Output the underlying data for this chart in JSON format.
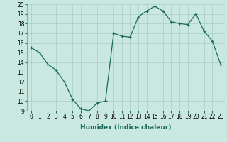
{
  "x": [
    0,
    1,
    2,
    3,
    4,
    5,
    6,
    7,
    8,
    9,
    10,
    11,
    12,
    13,
    14,
    15,
    16,
    17,
    18,
    19,
    20,
    21,
    22,
    23
  ],
  "y": [
    15.5,
    15.0,
    13.8,
    13.2,
    12.0,
    10.2,
    9.2,
    9.0,
    9.8,
    10.0,
    17.0,
    16.7,
    16.6,
    18.7,
    19.3,
    19.8,
    19.3,
    18.2,
    18.0,
    17.9,
    19.0,
    17.2,
    16.2,
    13.8
  ],
  "line_color": "#1a6b5a",
  "marker": "+",
  "marker_size": 3,
  "marker_linewidth": 0.9,
  "linewidth": 0.9,
  "background_color": "#c8e8e0",
  "grid_color": "#aacccc",
  "xlabel": "Humidex (Indice chaleur)",
  "xlabel_fontsize": 6.5,
  "tick_fontsize": 5.5,
  "xlim": [
    -0.5,
    23.5
  ],
  "ylim": [
    9,
    20
  ],
  "yticks": [
    9,
    10,
    11,
    12,
    13,
    14,
    15,
    16,
    17,
    18,
    19,
    20
  ],
  "xticks": [
    0,
    1,
    2,
    3,
    4,
    5,
    6,
    7,
    8,
    9,
    10,
    11,
    12,
    13,
    14,
    15,
    16,
    17,
    18,
    19,
    20,
    21,
    22,
    23
  ]
}
